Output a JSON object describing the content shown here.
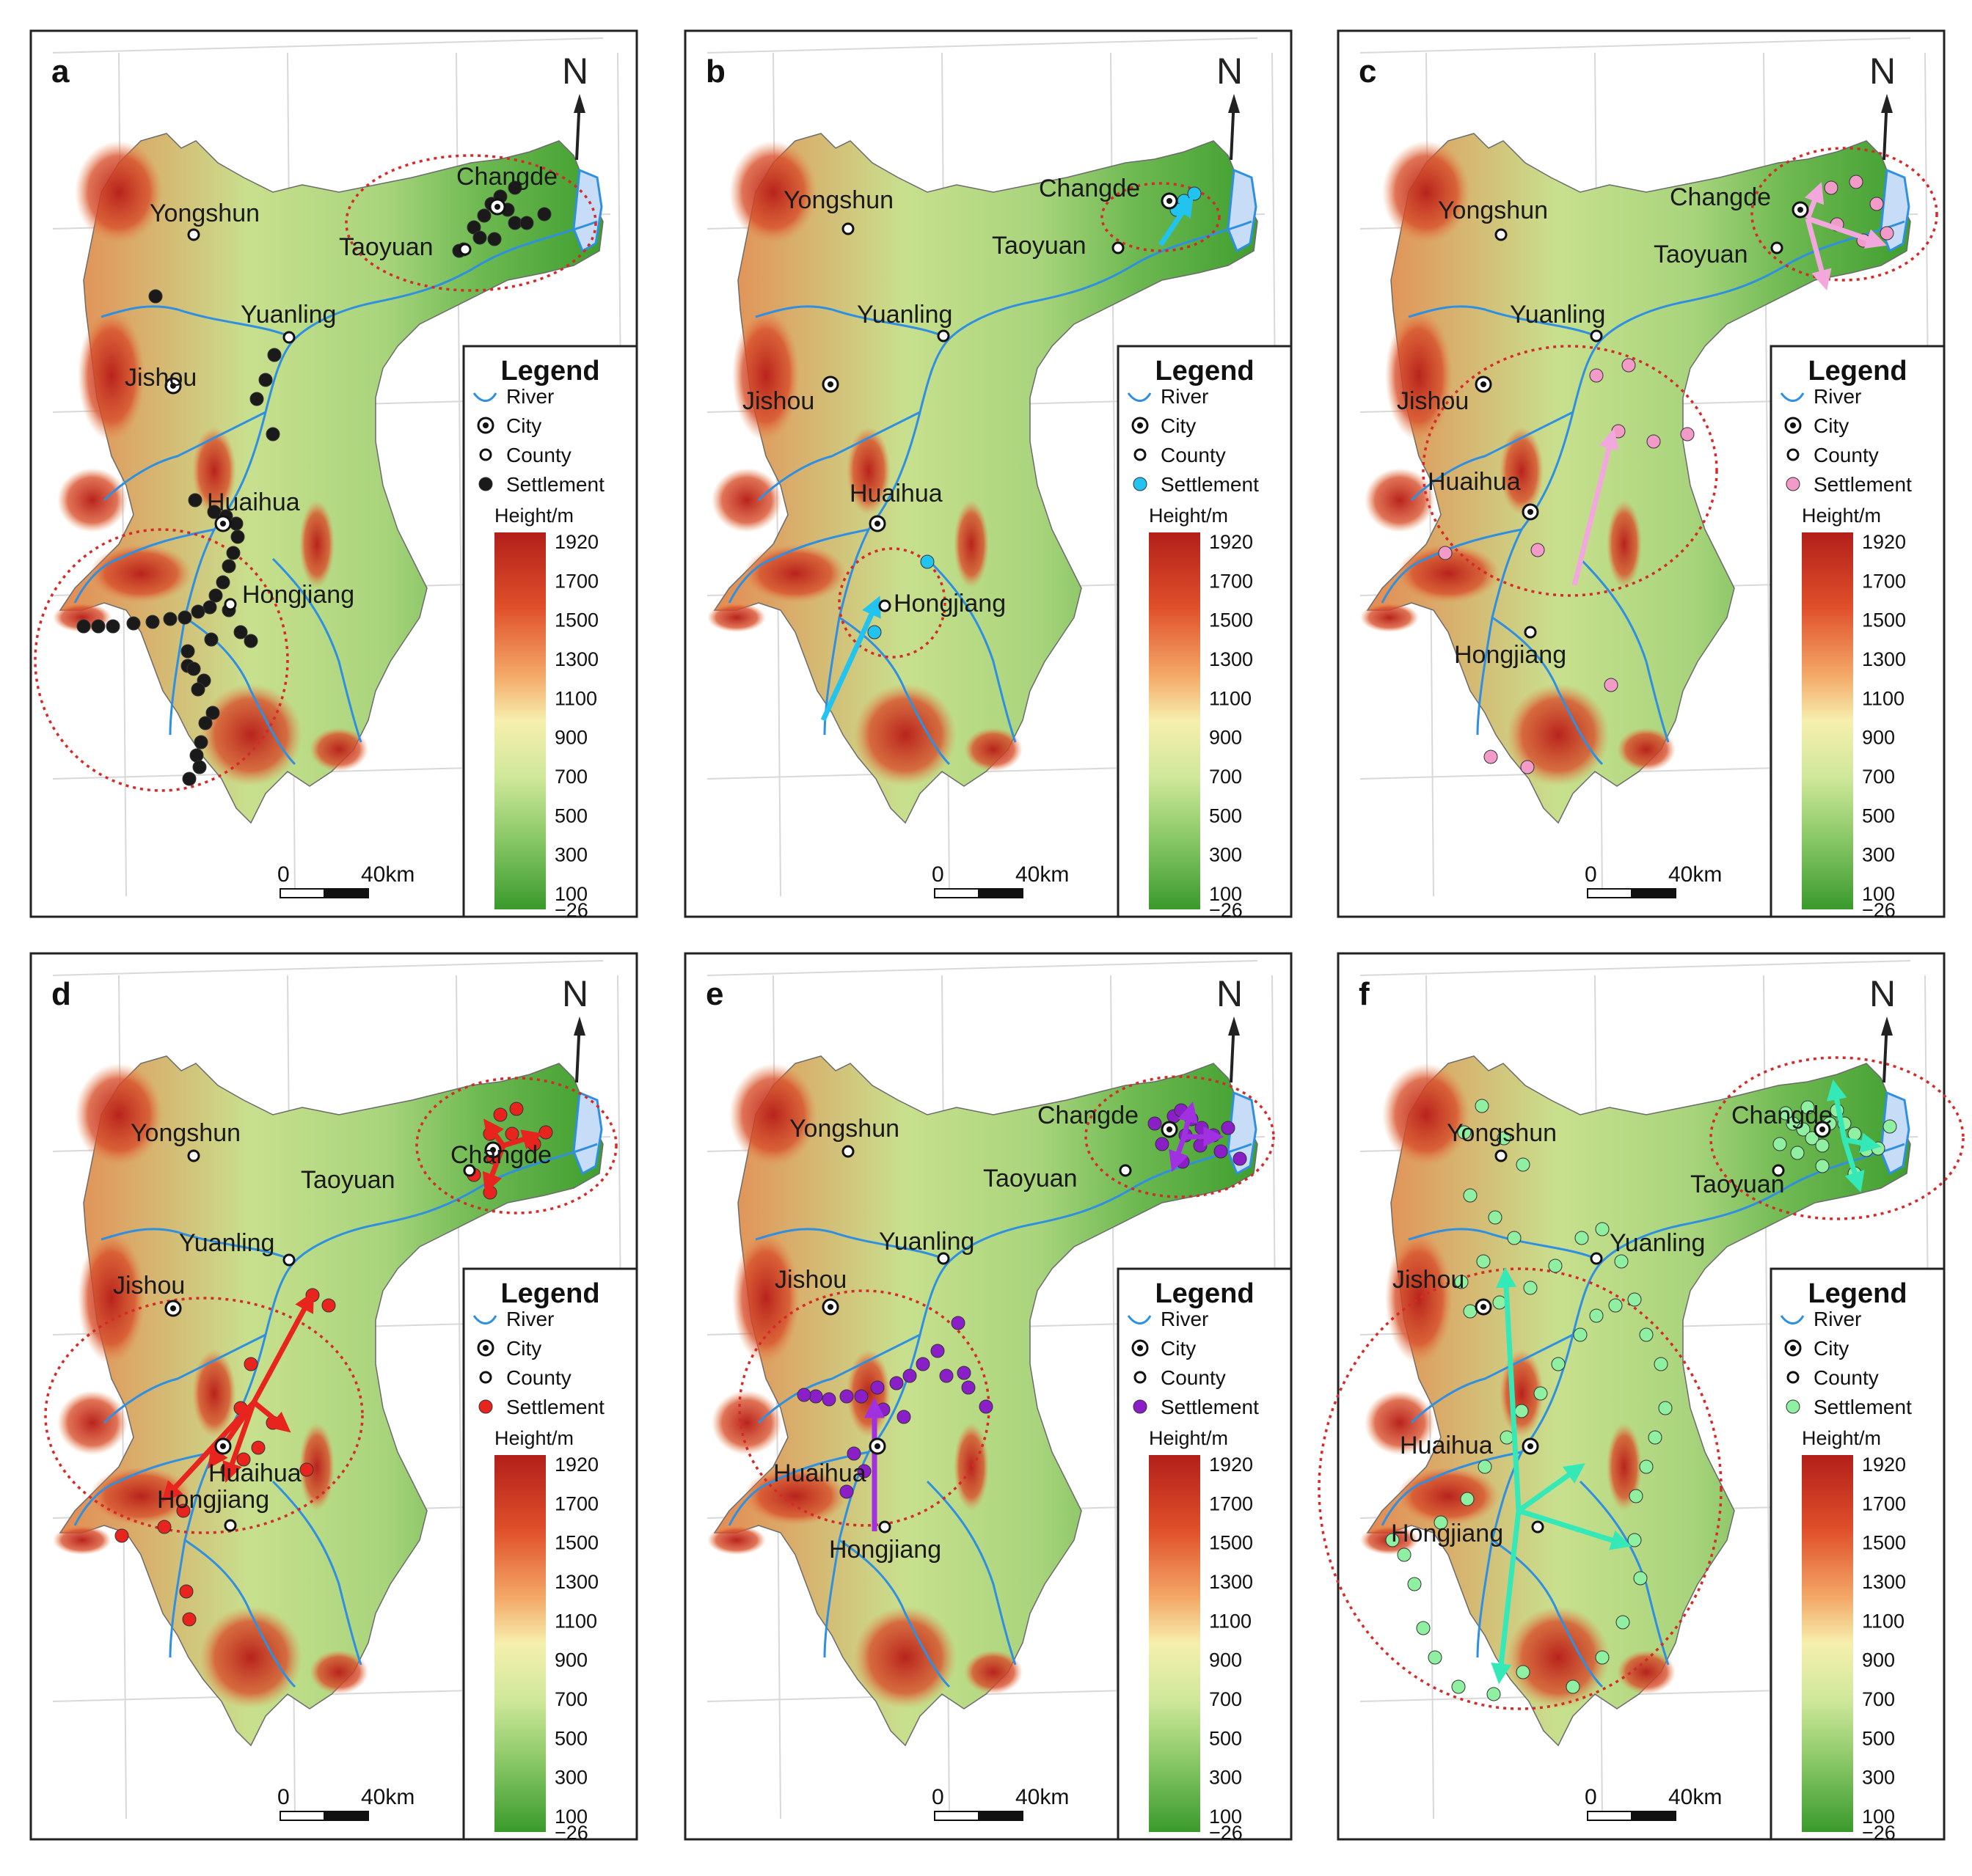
{
  "figure": {
    "panels": [
      {
        "id": "a",
        "label": "a",
        "settlement_color": "#1a1a1a",
        "places": [
          {
            "key": "changde",
            "name": "Changde",
            "kind": "city"
          },
          {
            "key": "taoyuan",
            "name": "Taoyuan",
            "kind": "county"
          },
          {
            "key": "yongshun",
            "name": "Yongshun",
            "kind": "county"
          },
          {
            "key": "yuanling",
            "name": "Yuanling",
            "kind": "county"
          },
          {
            "key": "jishou",
            "name": "Jishou",
            "kind": "city"
          },
          {
            "key": "huaihua",
            "name": "Huaihua",
            "kind": "city"
          },
          {
            "key": "hongjiang",
            "name": "Hongjiang",
            "kind": "county"
          }
        ]
      },
      {
        "id": "b",
        "label": "b",
        "settlement_color": "#22c3ee",
        "places": [
          {
            "key": "changde",
            "name": "Changde",
            "kind": "city"
          },
          {
            "key": "taoyuan",
            "name": "Taoyuan",
            "kind": "county"
          },
          {
            "key": "yongshun",
            "name": "Yongshun",
            "kind": "county"
          },
          {
            "key": "yuanling",
            "name": "Yuanling",
            "kind": "county"
          },
          {
            "key": "jishou",
            "name": "Jishou",
            "kind": "city"
          },
          {
            "key": "huaihua",
            "name": "Huaihua",
            "kind": "city"
          },
          {
            "key": "hongjiang",
            "name": "Hongjiang",
            "kind": "county"
          }
        ]
      },
      {
        "id": "c",
        "label": "c",
        "settlement_color": "#f29ac8",
        "places": [
          {
            "key": "changde",
            "name": "Changde",
            "kind": "city"
          },
          {
            "key": "taoyuan",
            "name": "Taoyuan",
            "kind": "county"
          },
          {
            "key": "yongshun",
            "name": "Yongshun",
            "kind": "county"
          },
          {
            "key": "yuanling",
            "name": "Yuanling",
            "kind": "county"
          },
          {
            "key": "jishou",
            "name": "Jishou",
            "kind": "city"
          },
          {
            "key": "huaihua",
            "name": "Huaihua",
            "kind": "city"
          },
          {
            "key": "hongjiang",
            "name": "Hongjiang",
            "kind": "county"
          }
        ]
      },
      {
        "id": "d",
        "label": "d",
        "settlement_color": "#e8241e",
        "places": [
          {
            "key": "changde",
            "name": "Changde",
            "kind": "city"
          },
          {
            "key": "taoyuan",
            "name": "Taoyuan",
            "kind": "county"
          },
          {
            "key": "yongshun",
            "name": "Yongshun",
            "kind": "county"
          },
          {
            "key": "yuanling",
            "name": "Yuanling",
            "kind": "county"
          },
          {
            "key": "jishou",
            "name": "Jishou",
            "kind": "city"
          },
          {
            "key": "huaihua",
            "name": "Huaihua",
            "kind": "city"
          },
          {
            "key": "hongjiang",
            "name": "Hongjiang",
            "kind": "county"
          }
        ]
      },
      {
        "id": "e",
        "label": "e",
        "settlement_color": "#8a1fc8",
        "places": [
          {
            "key": "changde",
            "name": "Changde",
            "kind": "city"
          },
          {
            "key": "taoyuan",
            "name": "Taoyuan",
            "kind": "county"
          },
          {
            "key": "yongshun",
            "name": "Yongshun",
            "kind": "county"
          },
          {
            "key": "yuanling",
            "name": "Yuanling",
            "kind": "county"
          },
          {
            "key": "jishou",
            "name": "Jishou",
            "kind": "city"
          },
          {
            "key": "huaihua",
            "name": "Huaihua",
            "kind": "city"
          },
          {
            "key": "hongjiang",
            "name": "Hongjiang",
            "kind": "county"
          }
        ]
      },
      {
        "id": "f",
        "label": "f",
        "settlement_color": "#8ef0a0",
        "places": [
          {
            "key": "changde",
            "name": "Changde",
            "kind": "city"
          },
          {
            "key": "taoyuan",
            "name": "Taoyuan",
            "kind": "county"
          },
          {
            "key": "yongshun",
            "name": "Yongshun",
            "kind": "county"
          },
          {
            "key": "yuanling",
            "name": "Yuanling",
            "kind": "county"
          },
          {
            "key": "jishou",
            "name": "Jishou",
            "kind": "city"
          },
          {
            "key": "huaihua",
            "name": "Huaihua",
            "kind": "city"
          },
          {
            "key": "hongjiang",
            "name": "Hongjiang",
            "kind": "county"
          }
        ]
      }
    ],
    "north_label": "N",
    "legend": {
      "title": "Legend",
      "river": "River",
      "city": "City",
      "county": "County",
      "settlement": "Settlement",
      "height_title": "Height/m",
      "ticks": [
        "1920",
        "1700",
        "1500",
        "1300",
        "1100",
        "900",
        "700",
        "500",
        "300",
        "100",
        "−26"
      ]
    },
    "scale_bar": {
      "start": "0",
      "end": "40km"
    },
    "colors": {
      "river": "#2f8fe0",
      "ellipse": "#d42a2a",
      "high": "#b8231c",
      "mid_high": "#f0a060",
      "mid": "#f2f0a8",
      "low": "#9ed27a",
      "lowest": "#3f9e2e"
    }
  }
}
